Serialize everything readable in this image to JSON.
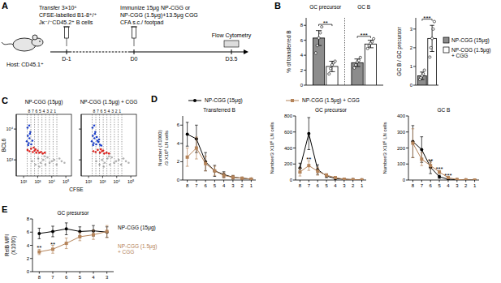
{
  "panel_labels": [
    "A",
    "B",
    "C",
    "D",
    "E"
  ],
  "schematic": {
    "transfer": [
      "Transfer 3×10⁶",
      "CFSE-labelled B1-8⁺/⁺",
      "Jκ⁻/⁻CD45.2⁺ B cells"
    ],
    "host": "Host: CD45.1⁺",
    "immunize": [
      "Immunize 15μg NP-CGG or",
      "NP-CGG (1.5μg)+13.5μg CGG",
      "CFA s.c./ footpad"
    ],
    "readout": "Flow Cytometry",
    "days": [
      "D-1",
      "D0",
      "D3.5"
    ]
  },
  "chart_data": [
    {
      "type": "bar",
      "ylabel": "% of transferred B",
      "categories": [
        "GC precursor",
        "GC B"
      ],
      "ylim": [
        0,
        9
      ],
      "yticks": [
        0,
        2,
        4,
        6,
        8
      ],
      "series": [
        {
          "color": "#8c8c8c",
          "values": [
            6.3,
            3.0
          ],
          "errors": [
            1.0,
            0.5
          ],
          "points": [
            [
              4.3,
              5.3,
              6.3,
              7.0,
              7.8
            ],
            [
              2.3,
              2.7,
              3.1,
              3.3,
              3.7
            ]
          ]
        },
        {
          "color": "#ffffff",
          "values": [
            2.5,
            5.5
          ],
          "errors": [
            0.7,
            0.5
          ],
          "points": [
            [
              1.5,
              2.2,
              2.7,
              3.0,
              3.2
            ],
            [
              4.9,
              5.3,
              5.6,
              5.8,
              6.2
            ]
          ]
        }
      ],
      "annotations": [
        {
          "category": 0,
          "text": "**"
        },
        {
          "category": 1,
          "text": "***"
        }
      ]
    },
    {
      "type": "bar",
      "ylabel": "GC B / GC precursor",
      "categories": [
        null
      ],
      "ylim": [
        0,
        3.6
      ],
      "yticks": [
        0,
        1,
        2,
        3
      ],
      "legend": "right",
      "series": [
        {
          "name": "NP-CGG (15μg)",
          "color": "#8c8c8c",
          "values": [
            0.5
          ],
          "errors": [
            0.2
          ],
          "points": [
            [
              0.3,
              0.4,
              0.5,
              0.6,
              0.8
            ]
          ]
        },
        {
          "name": "NP-CGG (1.5μg) + CGG",
          "color": "#ffffff",
          "values": [
            2.5
          ],
          "errors": [
            0.7
          ],
          "points": [
            [
              1.5,
              2.0,
              2.5,
              3.0,
              3.4
            ]
          ]
        }
      ],
      "annotations": [
        {
          "category": 0,
          "text": "***"
        }
      ]
    },
    {
      "type": "scatter",
      "title": "NP-CGG (15μg)",
      "ylabel": "BCL6",
      "log": true,
      "xlim": [
        30,
        250000
      ],
      "ylim": [
        300,
        30000
      ],
      "xticks": [
        {
          "value": 100,
          "label": "10²"
        },
        {
          "value": 1000,
          "label": "10³"
        },
        {
          "value": 10000,
          "label": "10⁴"
        },
        {
          "value": 100000,
          "label": "10⁵"
        }
      ],
      "yticks": [
        {
          "value": 1000,
          "label": "10³"
        },
        {
          "value": 10000,
          "label": "10⁴"
        }
      ],
      "gates": {
        "labels": [
          8,
          7,
          6,
          5,
          4,
          3,
          2,
          1
        ],
        "edges": [
          180,
          330,
          600,
          1100,
          2000,
          3700,
          6800,
          12500,
          23000
        ]
      },
      "series": [
        {
          "color": "#b3b3b3",
          "x": [
            400,
            700,
            1100,
            1600,
            2500,
            3500,
            5000,
            7000,
            10000,
            15000,
            22000,
            35000,
            50000,
            80000,
            1300,
            3000
          ],
          "values": [
            900,
            700,
            1100,
            800,
            1000,
            700,
            1200,
            800,
            900,
            1000,
            700,
            1100,
            900,
            800,
            600,
            1300
          ]
        },
        {
          "color": "#1a3fcf",
          "x": [
            170,
            200,
            230,
            260,
            300,
            190,
            350,
            420,
            280,
            210,
            250
          ],
          "values": [
            4000,
            6000,
            3500,
            5000,
            8000,
            11000,
            3200,
            4200,
            7000,
            3000,
            13000
          ]
        },
        {
          "color": "#e3201b",
          "x": [
            190,
            260,
            340,
            450,
            600,
            800,
            1000,
            1300,
            1700,
            2300,
            3200,
            520,
            700
          ],
          "values": [
            2100,
            1900,
            2300,
            1800,
            2000,
            1700,
            2000,
            1700,
            1800,
            1600,
            1700,
            2500,
            2200
          ]
        }
      ]
    },
    {
      "type": "scatter",
      "title": "NP-CGG (1.5μg) + CGG",
      "xlabel": "CFSE",
      "log": true,
      "tick_labels": "x",
      "xlim": [
        30,
        250000
      ],
      "ylim": [
        300,
        30000
      ],
      "xticks": [
        {
          "value": 100,
          "label": "10²"
        },
        {
          "value": 1000,
          "label": "10³"
        },
        {
          "value": 10000,
          "label": "10⁴"
        },
        {
          "value": 100000,
          "label": "10⁵"
        }
      ],
      "yticks": [
        {
          "value": 1000,
          "label": "10³"
        },
        {
          "value": 10000,
          "label": "10⁴"
        }
      ],
      "gates": {
        "labels": [
          8,
          7,
          6,
          5,
          4,
          3,
          2,
          1
        ],
        "edges": [
          180,
          330,
          600,
          1100,
          2000,
          3700,
          6800,
          12500,
          23000
        ]
      },
      "series": [
        {
          "color": "#b3b3b3",
          "x": [
            350,
            600,
            900,
            1400,
            2200,
            3200,
            4500,
            6500,
            9000,
            14000,
            20000,
            30000,
            45000,
            70000,
            1200,
            2800
          ],
          "values": [
            900,
            700,
            1000,
            800,
            1100,
            700,
            1200,
            800,
            900,
            1000,
            700,
            1100,
            900,
            800,
            600,
            1300
          ]
        },
        {
          "color": "#1a3fcf",
          "x": [
            170,
            200,
            230,
            260,
            300,
            190,
            350,
            420,
            280,
            210,
            250,
            500,
            650,
            800,
            380,
            560
          ],
          "values": [
            4000,
            6000,
            3500,
            5000,
            8000,
            11000,
            3200,
            4200,
            7000,
            3000,
            13000,
            3800,
            3100,
            2900,
            5500,
            4600
          ]
        },
        {
          "color": "#e3201b",
          "x": [
            220,
            320,
            450,
            650,
            900,
            1300,
            1900,
            2800,
            750,
            1100
          ],
          "values": [
            1900,
            1800,
            2100,
            1700,
            1900,
            1600,
            1700,
            1600,
            2200,
            2000
          ]
        }
      ]
    },
    {
      "type": "line",
      "title": "Transferred B",
      "ylabel": [
        "Number (X1000)",
        "/3 X10⁶ LN cells"
      ],
      "legend": "top",
      "categories": [
        "8",
        "7",
        "6",
        "5",
        "4",
        "3",
        "2",
        "1"
      ],
      "ylim": [
        0,
        7
      ],
      "yticks": [
        0,
        2,
        4,
        6
      ],
      "series": [
        {
          "name": "NP-CGG (15μg)",
          "color": "#000000",
          "marker": "circle",
          "values": [
            5,
            4.5,
            2,
            1,
            0.6,
            0.3,
            0.2,
            0.1
          ],
          "errors": [
            1.3,
            1.5,
            1,
            0.6,
            0.3,
            0.2,
            0.1,
            0.05
          ]
        },
        {
          "name": "NP-CGG (1.5μg) + CGG",
          "color": "#b5845a",
          "marker": "square",
          "values": [
            2.5,
            3.5,
            1.8,
            1,
            0.5,
            0.3,
            0.2,
            0.1
          ],
          "errors": [
            1,
            1.2,
            0.8,
            0.5,
            0.3,
            0.2,
            0.1,
            0.05
          ]
        }
      ]
    },
    {
      "type": "line",
      "title": "GC precursor",
      "ylabel": "Number/3 X10⁶ LN cells",
      "categories": [
        "8",
        "7",
        "6",
        "5",
        "4",
        "3",
        "2",
        "1"
      ],
      "ylim": [
        0,
        800
      ],
      "yticks": [
        0,
        200,
        400,
        600,
        800
      ],
      "series": [
        {
          "color": "#000000",
          "marker": "circle",
          "values": [
            150,
            580,
            130,
            50,
            20,
            10,
            5,
            2
          ],
          "errors": [
            60,
            200,
            60,
            20,
            10,
            5,
            2,
            1
          ]
        },
        {
          "color": "#b5845a",
          "marker": "square",
          "values": [
            100,
            180,
            110,
            60,
            30,
            10,
            5,
            2
          ],
          "errors": [
            50,
            60,
            50,
            20,
            10,
            5,
            2,
            1
          ]
        }
      ],
      "annotations": [
        {
          "category": 1,
          "text": "**"
        }
      ]
    },
    {
      "type": "line",
      "title": "GC B",
      "ylabel": "Number/3 X10⁶ LN cells",
      "categories": [
        "8",
        "7",
        "6",
        "5",
        "4",
        "3",
        "2",
        "1"
      ],
      "ylim": [
        0,
        400
      ],
      "yticks": [
        0,
        100,
        200,
        300,
        400
      ],
      "series": [
        {
          "color": "#000000",
          "marker": "circle",
          "values": [
            240,
            190,
            80,
            20,
            5,
            2,
            1,
            0
          ],
          "errors": [
            100,
            80,
            40,
            10,
            3,
            1,
            1,
            0
          ]
        },
        {
          "color": "#b5845a",
          "marker": "square",
          "values": [
            230,
            130,
            90,
            50,
            15,
            3,
            1,
            0
          ],
          "errors": [
            90,
            40,
            20,
            10,
            5,
            2,
            1,
            0
          ]
        }
      ],
      "annotations": [
        {
          "category": 2,
          "text": "**"
        },
        {
          "category": 3,
          "text": "***"
        },
        {
          "category": 4,
          "text": "***"
        }
      ]
    },
    {
      "type": "line",
      "title": "GC presursor",
      "ylabel": [
        "RelB MFI",
        "(X1000)"
      ],
      "legend": "right",
      "categories": [
        "8",
        "7",
        "6",
        "5",
        "4",
        "3"
      ],
      "ylim": [
        0,
        8
      ],
      "yticks": [
        0,
        2,
        4,
        6,
        8
      ],
      "series": [
        {
          "name": "NP-CGG (15μg)",
          "color": "#000000",
          "marker": "circle",
          "values": [
            5.8,
            6.1,
            6.5,
            6.1,
            6.2,
            6.0
          ],
          "errors": [
            0.8,
            0.8,
            0.9,
            0.7,
            0.8,
            0.8
          ]
        },
        {
          "name": "NP-CGG (1.5μg) + CGG",
          "color": "#b5845a",
          "marker": "square",
          "values": [
            3.0,
            3.4,
            4.3,
            5.3,
            5.6,
            6.1
          ],
          "errors": [
            0.4,
            0.6,
            0.8,
            0.6,
            0.7,
            0.9
          ]
        }
      ],
      "annotations": [
        {
          "category": 0,
          "text": "**"
        },
        {
          "category": 1,
          "text": "**"
        }
      ]
    }
  ]
}
